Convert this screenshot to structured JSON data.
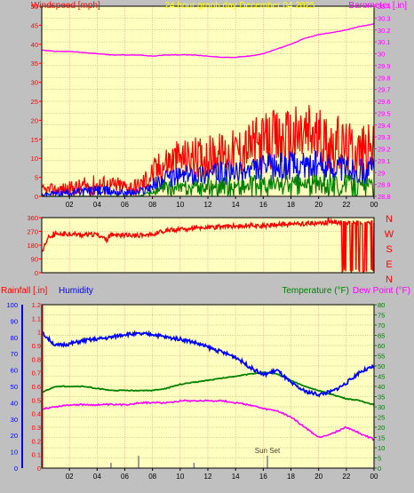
{
  "header": {
    "left_label": "Windspeed [mph]",
    "center_label": "24 hour graph day   December 04 2025",
    "right_label": "Barometer [.in]"
  },
  "colors": {
    "background": "#c0c0c0",
    "plot_bg": "#ffffc0",
    "grid": "#ff8080",
    "wind_gust": "#ff0000",
    "wind_avg": "#0000ff",
    "wind_min": "#008000",
    "barometer": "#ff00ff",
    "direction": "#ff0000",
    "humidity": "#0000ff",
    "temperature": "#008000",
    "dewpoint": "#ff00ff",
    "rainfall": "#ff0000",
    "solar": "#808080"
  },
  "bottom_header": {
    "rain_label": "Rainfall [.in]",
    "humidity_label": "Humidity",
    "temp_label": "Temperature (°F)",
    "dew_label": "Dew Point (°F)"
  },
  "compass": [
    "N",
    "W",
    "S",
    "E",
    "N"
  ],
  "annotation": "Sun Set",
  "chart_data": [
    {
      "type": "line",
      "name": "wind-barometer",
      "x_ticks": [
        "02",
        "04",
        "06",
        "08",
        "10",
        "12",
        "14",
        "16",
        "18",
        "20",
        "22",
        "00"
      ],
      "xlim": [
        0,
        24
      ],
      "y_left_ticks": [
        "0",
        "5",
        "10",
        "15",
        "20",
        "25",
        "30",
        "35",
        "40",
        "45",
        "50"
      ],
      "ylim_left": [
        0,
        50
      ],
      "y_right_ticks": [
        "28.8",
        "28.9",
        "29",
        "29.1",
        "29.2",
        "29.3",
        "29.4",
        "29.5",
        "29.6",
        "29.7",
        "29.8",
        "29.9",
        "30",
        "30.1",
        "30.2",
        "30.3",
        "30.4"
      ],
      "ylim_right": [
        28.8,
        30.4
      ],
      "barometer": {
        "x": [
          0,
          1,
          2,
          3,
          4,
          5,
          6,
          7,
          8,
          9,
          10,
          11,
          12,
          13,
          14,
          15,
          16,
          17,
          18,
          19,
          20,
          21,
          22,
          23,
          24
        ],
        "y": [
          30.03,
          30.02,
          30.02,
          30.01,
          30.0,
          29.99,
          29.99,
          29.99,
          29.98,
          29.99,
          29.99,
          29.99,
          29.98,
          29.97,
          29.97,
          29.98,
          30.0,
          30.04,
          30.08,
          30.13,
          30.16,
          30.18,
          30.2,
          30.23,
          30.25
        ]
      },
      "wind_gust_envelope": {
        "x": [
          0,
          2,
          4,
          6,
          7,
          8,
          9,
          10,
          12,
          14,
          16,
          18,
          19.5,
          20,
          21,
          22,
          23,
          24
        ],
        "low": [
          0,
          0,
          0,
          0,
          0,
          2,
          4,
          5,
          5,
          6,
          6,
          6,
          7,
          7,
          6,
          6,
          5,
          6
        ],
        "high": [
          3,
          4,
          6,
          5,
          5,
          10,
          14,
          15,
          16,
          18,
          22,
          24,
          26,
          23,
          22,
          20,
          19,
          19
        ]
      },
      "wind_avg_envelope": {
        "x": [
          0,
          2,
          4,
          6,
          7,
          8,
          9,
          10,
          12,
          14,
          16,
          18,
          20,
          22,
          23,
          24
        ],
        "low": [
          0,
          0,
          0,
          0,
          0,
          1,
          2,
          3,
          3,
          3,
          4,
          4,
          4,
          4,
          3,
          3
        ],
        "high": [
          1,
          2,
          3,
          2,
          2,
          5,
          7,
          8,
          9,
          9,
          11,
          12,
          12,
          11,
          10,
          11
        ]
      },
      "wind_min_envelope": {
        "x": [
          0,
          2,
          4,
          6,
          7,
          8,
          9,
          10,
          12,
          14,
          16,
          18,
          20,
          22,
          23,
          24
        ],
        "low": [
          0,
          0,
          0,
          0,
          0,
          0,
          0,
          0,
          0,
          0,
          0,
          0,
          0,
          0,
          0,
          0
        ],
        "high": [
          0,
          0,
          0,
          0,
          0,
          2,
          4,
          4,
          5,
          5,
          6,
          6,
          6,
          6,
          5,
          5
        ]
      }
    },
    {
      "type": "line",
      "name": "wind-direction",
      "y_ticks": [
        "0",
        "90",
        "180",
        "270",
        "360"
      ],
      "ylim": [
        0,
        360
      ],
      "x": [
        0,
        0.5,
        1,
        2,
        3,
        4,
        4.7,
        5,
        6,
        7,
        8,
        9,
        10,
        11,
        12,
        13,
        14,
        15,
        16,
        17,
        18,
        19,
        20,
        21,
        21.3,
        21.5,
        22,
        23,
        24
      ],
      "y": [
        140,
        230,
        245,
        255,
        245,
        250,
        215,
        250,
        245,
        245,
        250,
        275,
        285,
        290,
        295,
        300,
        305,
        310,
        305,
        315,
        318,
        320,
        325,
        330,
        330,
        330,
        330,
        330,
        330
      ]
    },
    {
      "type": "line",
      "name": "temp-humidity",
      "rain_ticks": [
        "0",
        "0.1",
        "0.2",
        "0.3",
        "0.4",
        "0.5",
        "0.6",
        "0.7",
        "0.8",
        "0.9",
        "1",
        "1.1",
        "1.2"
      ],
      "ylim_rain": [
        0,
        1.2
      ],
      "humidity_ticks": [
        "0",
        "10",
        "20",
        "30",
        "40",
        "50",
        "60",
        "70",
        "80",
        "90",
        "100"
      ],
      "ylim_humidity": [
        0,
        100
      ],
      "temp_ticks": [
        "0",
        "5",
        "10",
        "15",
        "20",
        "25",
        "30",
        "35",
        "40",
        "45",
        "50",
        "55",
        "60",
        "65",
        "70",
        "75",
        "80"
      ],
      "ylim_temp": [
        0,
        80
      ],
      "humidity": {
        "x": [
          0,
          1,
          2,
          3,
          4,
          5,
          6,
          7,
          8,
          9,
          10,
          11,
          12,
          13,
          14,
          15,
          16,
          17,
          18,
          19,
          20,
          21,
          22,
          23,
          24
        ],
        "y": [
          83,
          75,
          76,
          78,
          79,
          80,
          82,
          82,
          82,
          80,
          79,
          77,
          74,
          71,
          68,
          62,
          57,
          60,
          52,
          47,
          45,
          47,
          52,
          59,
          62
        ]
      },
      "temperature": {
        "x": [
          0,
          1,
          2,
          3,
          4,
          5,
          6,
          7,
          8,
          9,
          10,
          11,
          12,
          13,
          14,
          15,
          16,
          17,
          18,
          19,
          20,
          21,
          22,
          23,
          24
        ],
        "y": [
          37,
          40,
          40,
          40,
          39,
          38,
          38,
          38,
          38,
          39,
          41,
          42,
          43,
          44,
          45,
          46,
          47,
          46,
          43,
          40,
          38,
          36,
          34,
          33,
          31
        ]
      },
      "dewpoint": {
        "x": [
          0,
          1,
          2,
          3,
          4,
          5,
          6,
          7,
          8,
          9,
          10,
          11,
          12,
          13,
          14,
          15,
          16,
          17,
          18,
          19,
          20,
          21,
          22,
          23,
          24
        ],
        "y": [
          29,
          30,
          31,
          31,
          31,
          31,
          31,
          32,
          32,
          32,
          33,
          33,
          33,
          33,
          32,
          31,
          29,
          28,
          25,
          20,
          15,
          17,
          20,
          17,
          14
        ]
      },
      "solar_marks_x": [
        5,
        7,
        11,
        16.3
      ]
    }
  ]
}
